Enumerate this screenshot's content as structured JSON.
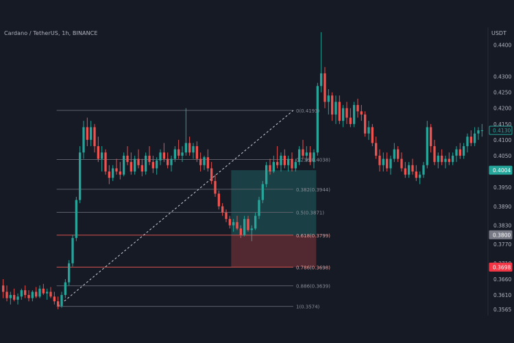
{
  "header": {
    "symbol_line": "Cardano / TetherUS, 1h, BINANCE",
    "unit": "USDT"
  },
  "colors": {
    "background": "#161a25",
    "up": "#26a69a",
    "down": "#ef5350",
    "fib_line": "#5d606b",
    "fib_red": "#d9534f",
    "axis_text": "#b2b5be",
    "price_tag_green": "#26a69a",
    "price_tag_gray": "#787b86",
    "price_tag_red": "#f23645"
  },
  "chart_data": {
    "type": "candlestick",
    "y_axis": {
      "side": "right",
      "ylim": [
        0.3545,
        0.4455
      ],
      "ticks": [
        "0.4400",
        "0.4300",
        "0.4250",
        "0.4200",
        "0.4150",
        "0.4100",
        "0.4050",
        "0.3950",
        "0.3890",
        "0.3830",
        "0.3770",
        "0.3710",
        "0.3660",
        "0.3610",
        "0.3565"
      ],
      "tick_values": [
        0.44,
        0.43,
        0.425,
        0.42,
        0.415,
        0.41,
        0.405,
        0.395,
        0.389,
        0.383,
        0.377,
        0.371,
        0.366,
        0.361,
        0.3565
      ]
    },
    "price_tags": [
      {
        "label": "0.4130",
        "value": 0.413,
        "style": "outline"
      },
      {
        "label": "0.4004",
        "value": 0.4004,
        "style": "green"
      },
      {
        "label": "0.3800",
        "value": 0.38,
        "style": "gray"
      },
      {
        "label": "0.3698",
        "value": 0.3698,
        "style": "red"
      }
    ],
    "fibonacci": {
      "levels": [
        {
          "label": "0(0.4193)",
          "value": 0.4193
        },
        {
          "label": "0.236(0.4038)",
          "value": 0.4038
        },
        {
          "label": "0.382(0.3944)",
          "value": 0.3944
        },
        {
          "label": "0.5(0.3871)",
          "value": 0.3871
        },
        {
          "label": "0.618(0.3799)",
          "value": 0.3799
        },
        {
          "label": "0.786(0.3698)",
          "value": 0.3698
        },
        {
          "label": "0.886(0.3639)",
          "value": 0.3639
        },
        {
          "label": "1(0.3574)",
          "value": 0.3574
        }
      ],
      "red_levels": [
        "0.618(0.3799)",
        "0.786(0.3698)"
      ]
    },
    "trend_line": {
      "from": 0.3574,
      "to": 0.4193
    },
    "position_tool": {
      "entry": 0.3799,
      "target": 0.4004,
      "stop": 0.3698
    },
    "candles_ohlc": [
      [
        0.364,
        0.366,
        0.36,
        0.362
      ],
      [
        0.362,
        0.364,
        0.359,
        0.36
      ],
      [
        0.36,
        0.362,
        0.358,
        0.361
      ],
      [
        0.361,
        0.363,
        0.359,
        0.3595
      ],
      [
        0.3595,
        0.3615,
        0.358,
        0.3605
      ],
      [
        0.3605,
        0.363,
        0.3595,
        0.3625
      ],
      [
        0.3625,
        0.364,
        0.36,
        0.361
      ],
      [
        0.361,
        0.3625,
        0.359,
        0.36
      ],
      [
        0.36,
        0.3625,
        0.359,
        0.362
      ],
      [
        0.362,
        0.3635,
        0.36,
        0.3605
      ],
      [
        0.3605,
        0.364,
        0.36,
        0.363
      ],
      [
        0.363,
        0.3645,
        0.361,
        0.3615
      ],
      [
        0.3615,
        0.363,
        0.3595,
        0.362
      ],
      [
        0.362,
        0.3635,
        0.36,
        0.3605
      ],
      [
        0.3605,
        0.362,
        0.358,
        0.359
      ],
      [
        0.359,
        0.3605,
        0.3565,
        0.3575
      ],
      [
        0.3575,
        0.362,
        0.357,
        0.361
      ],
      [
        0.361,
        0.366,
        0.36,
        0.365
      ],
      [
        0.365,
        0.372,
        0.364,
        0.371
      ],
      [
        0.371,
        0.38,
        0.37,
        0.379
      ],
      [
        0.379,
        0.392,
        0.378,
        0.391
      ],
      [
        0.391,
        0.408,
        0.39,
        0.406
      ],
      [
        0.406,
        0.416,
        0.404,
        0.414
      ],
      [
        0.414,
        0.417,
        0.408,
        0.41
      ],
      [
        0.41,
        0.416,
        0.408,
        0.414
      ],
      [
        0.414,
        0.415,
        0.406,
        0.408
      ],
      [
        0.408,
        0.411,
        0.403,
        0.404
      ],
      [
        0.404,
        0.408,
        0.4,
        0.406
      ],
      [
        0.406,
        0.407,
        0.399,
        0.4
      ],
      [
        0.4,
        0.402,
        0.396,
        0.398
      ],
      [
        0.398,
        0.402,
        0.397,
        0.401
      ],
      [
        0.401,
        0.404,
        0.399,
        0.4
      ],
      [
        0.4,
        0.403,
        0.3975,
        0.399
      ],
      [
        0.399,
        0.406,
        0.3985,
        0.405
      ],
      [
        0.405,
        0.408,
        0.402,
        0.403
      ],
      [
        0.403,
        0.406,
        0.399,
        0.4
      ],
      [
        0.4,
        0.405,
        0.399,
        0.404
      ],
      [
        0.404,
        0.407,
        0.401,
        0.402
      ],
      [
        0.402,
        0.404,
        0.3985,
        0.4
      ],
      [
        0.4,
        0.406,
        0.399,
        0.405
      ],
      [
        0.405,
        0.408,
        0.402,
        0.403
      ],
      [
        0.403,
        0.405,
        0.3995,
        0.401
      ],
      [
        0.401,
        0.4045,
        0.399,
        0.4035
      ],
      [
        0.4035,
        0.407,
        0.402,
        0.406
      ],
      [
        0.406,
        0.409,
        0.403,
        0.404
      ],
      [
        0.404,
        0.406,
        0.401,
        0.402
      ],
      [
        0.402,
        0.405,
        0.4,
        0.404
      ],
      [
        0.404,
        0.408,
        0.403,
        0.407
      ],
      [
        0.407,
        0.41,
        0.404,
        0.405
      ],
      [
        0.405,
        0.408,
        0.403,
        0.406
      ],
      [
        0.406,
        0.42,
        0.405,
        0.409
      ],
      [
        0.409,
        0.411,
        0.405,
        0.406
      ],
      [
        0.406,
        0.409,
        0.404,
        0.408
      ],
      [
        0.408,
        0.4095,
        0.403,
        0.404
      ],
      [
        0.404,
        0.406,
        0.4,
        0.402
      ],
      [
        0.402,
        0.405,
        0.4005,
        0.4045
      ],
      [
        0.4045,
        0.407,
        0.4,
        0.401
      ],
      [
        0.401,
        0.403,
        0.396,
        0.397
      ],
      [
        0.397,
        0.399,
        0.392,
        0.393
      ],
      [
        0.393,
        0.394,
        0.388,
        0.389
      ],
      [
        0.389,
        0.39,
        0.386,
        0.387
      ],
      [
        0.387,
        0.388,
        0.384,
        0.385
      ],
      [
        0.385,
        0.386,
        0.382,
        0.383
      ],
      [
        0.383,
        0.385,
        0.381,
        0.384
      ],
      [
        0.384,
        0.386,
        0.3815,
        0.382
      ],
      [
        0.382,
        0.383,
        0.379,
        0.38
      ],
      [
        0.38,
        0.386,
        0.3795,
        0.385
      ],
      [
        0.385,
        0.386,
        0.381,
        0.3815
      ],
      [
        0.3815,
        0.383,
        0.378,
        0.382
      ],
      [
        0.382,
        0.387,
        0.3815,
        0.386
      ],
      [
        0.386,
        0.392,
        0.385,
        0.391
      ],
      [
        0.391,
        0.397,
        0.39,
        0.396
      ],
      [
        0.396,
        0.403,
        0.395,
        0.402
      ],
      [
        0.402,
        0.404,
        0.399,
        0.4
      ],
      [
        0.4,
        0.405,
        0.3995,
        0.403
      ],
      [
        0.403,
        0.408,
        0.401,
        0.402
      ],
      [
        0.402,
        0.406,
        0.4,
        0.405
      ],
      [
        0.405,
        0.407,
        0.401,
        0.402
      ],
      [
        0.402,
        0.405,
        0.4,
        0.404
      ],
      [
        0.404,
        0.406,
        0.4,
        0.401
      ],
      [
        0.401,
        0.404,
        0.4,
        0.403
      ],
      [
        0.403,
        0.408,
        0.402,
        0.407
      ],
      [
        0.407,
        0.41,
        0.404,
        0.405
      ],
      [
        0.405,
        0.408,
        0.403,
        0.406
      ],
      [
        0.406,
        0.408,
        0.402,
        0.403
      ],
      [
        0.403,
        0.407,
        0.401,
        0.406
      ],
      [
        0.406,
        0.428,
        0.405,
        0.427
      ],
      [
        0.427,
        0.444,
        0.425,
        0.431
      ],
      [
        0.431,
        0.433,
        0.42,
        0.422
      ],
      [
        0.422,
        0.426,
        0.418,
        0.424
      ],
      [
        0.424,
        0.425,
        0.416,
        0.418
      ],
      [
        0.418,
        0.424,
        0.415,
        0.422
      ],
      [
        0.422,
        0.424,
        0.415,
        0.416
      ],
      [
        0.416,
        0.421,
        0.414,
        0.42
      ],
      [
        0.42,
        0.422,
        0.415,
        0.417
      ],
      [
        0.417,
        0.42,
        0.414,
        0.415
      ],
      [
        0.415,
        0.422,
        0.414,
        0.421
      ],
      [
        0.421,
        0.423,
        0.417,
        0.419
      ],
      [
        0.419,
        0.421,
        0.416,
        0.418
      ],
      [
        0.418,
        0.419,
        0.411,
        0.412
      ],
      [
        0.412,
        0.416,
        0.41,
        0.414
      ],
      [
        0.414,
        0.415,
        0.408,
        0.409
      ],
      [
        0.409,
        0.411,
        0.404,
        0.405
      ],
      [
        0.405,
        0.407,
        0.4,
        0.402
      ],
      [
        0.402,
        0.406,
        0.4,
        0.404
      ],
      [
        0.404,
        0.406,
        0.4,
        0.401
      ],
      [
        0.401,
        0.405,
        0.399,
        0.404
      ],
      [
        0.404,
        0.409,
        0.403,
        0.407
      ],
      [
        0.407,
        0.408,
        0.403,
        0.404
      ],
      [
        0.404,
        0.406,
        0.4,
        0.401
      ],
      [
        0.401,
        0.403,
        0.398,
        0.399
      ],
      [
        0.399,
        0.403,
        0.398,
        0.402
      ],
      [
        0.402,
        0.404,
        0.399,
        0.4
      ],
      [
        0.4,
        0.402,
        0.397,
        0.398
      ],
      [
        0.398,
        0.4,
        0.396,
        0.399
      ],
      [
        0.399,
        0.403,
        0.398,
        0.402
      ],
      [
        0.402,
        0.416,
        0.401,
        0.414
      ],
      [
        0.414,
        0.415,
        0.406,
        0.408
      ],
      [
        0.408,
        0.41,
        0.402,
        0.403
      ],
      [
        0.403,
        0.406,
        0.401,
        0.405
      ],
      [
        0.405,
        0.407,
        0.402,
        0.403
      ],
      [
        0.403,
        0.405,
        0.401,
        0.404
      ],
      [
        0.404,
        0.406,
        0.402,
        0.403
      ],
      [
        0.403,
        0.406,
        0.402,
        0.405
      ],
      [
        0.405,
        0.408,
        0.403,
        0.407
      ],
      [
        0.407,
        0.409,
        0.404,
        0.405
      ],
      [
        0.405,
        0.409,
        0.404,
        0.408
      ],
      [
        0.408,
        0.412,
        0.406,
        0.411
      ],
      [
        0.411,
        0.413,
        0.408,
        0.409
      ],
      [
        0.409,
        0.414,
        0.408,
        0.412
      ],
      [
        0.412,
        0.414,
        0.41,
        0.413
      ],
      [
        0.413,
        0.415,
        0.411,
        0.413
      ]
    ]
  }
}
